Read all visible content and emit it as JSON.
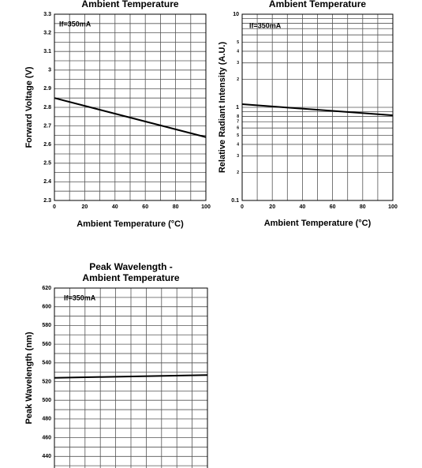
{
  "chart_data": [
    {
      "type": "line",
      "title": [
        "Ambient Temperature"
      ],
      "xlabel": "Ambient Temperature (°C)",
      "ylabel": "Forward Voltage (V)",
      "annotation": "If=350mA",
      "x": [
        0,
        100
      ],
      "values": [
        2.85,
        2.64
      ],
      "color": "#000000",
      "xlim": [
        0,
        100
      ],
      "ylim": [
        2.3,
        3.3
      ],
      "xticks": [
        0,
        20,
        40,
        60,
        80,
        100
      ],
      "yticks": [
        2.3,
        2.4,
        2.5,
        2.6,
        2.7,
        2.8,
        2.9,
        3.0,
        3.1,
        3.2,
        3.3
      ],
      "xgrid": [
        10,
        20,
        30,
        40,
        50,
        60,
        70,
        80,
        90
      ],
      "ygrid": [
        2.35,
        2.4,
        2.45,
        2.5,
        2.55,
        2.6,
        2.65,
        2.7,
        2.75,
        2.8,
        2.85,
        2.9,
        2.95,
        3.0,
        3.05,
        3.1,
        3.15,
        3.2,
        3.25
      ]
    },
    {
      "type": "line",
      "title": [
        "Ambient Temperature"
      ],
      "xlabel": "Ambient Temperature (°C)",
      "ylabel": "Relative Radiant Intensity (A.U.)",
      "annotation": "If=350mA",
      "x": [
        0,
        100
      ],
      "values": [
        1.08,
        0.82
      ],
      "color": "#000000",
      "ylog": true,
      "xlim": [
        0,
        100
      ],
      "ylim": [
        0.1,
        10
      ],
      "xticks": [
        0,
        20,
        40,
        60,
        80,
        100
      ],
      "yticks": [
        10,
        5,
        4,
        3,
        2,
        1,
        {
          "value": 0.8,
          "label": "8"
        },
        {
          "value": 0.7,
          "label": "7"
        },
        {
          "value": 0.6,
          "label": "6"
        },
        {
          "value": 0.5,
          "label": "5"
        },
        {
          "value": 0.4,
          "label": "4"
        },
        {
          "value": 0.3,
          "label": "3"
        },
        {
          "value": 0.2,
          "label": "2"
        },
        0.1
      ],
      "xgrid": [
        10,
        20,
        30,
        40,
        50,
        60,
        70,
        80,
        90
      ],
      "ygrid": [
        0.2,
        0.3,
        0.4,
        0.5,
        0.6,
        0.7,
        0.8,
        0.9,
        1,
        2,
        3,
        4,
        5,
        6,
        7,
        8,
        9
      ]
    },
    {
      "type": "line",
      "title": [
        "Peak Wavelength -",
        "Ambient Temperature"
      ],
      "ylabel": "Peak Wavelength (nm)",
      "annotation": "If=350mA",
      "x": [
        0,
        100
      ],
      "values": [
        524,
        527
      ],
      "color": "#000000",
      "xlim": [
        0,
        100
      ],
      "ylim": [
        420,
        620
      ],
      "yticks": [
        440,
        460,
        480,
        500,
        520,
        540,
        560,
        580,
        600,
        620
      ],
      "xgrid": [
        10,
        20,
        30,
        40,
        50,
        60,
        70,
        80,
        90
      ],
      "ygrid": [
        430,
        440,
        450,
        460,
        470,
        480,
        490,
        500,
        510,
        520,
        530,
        540,
        550,
        560,
        570,
        580,
        590,
        600,
        610
      ]
    }
  ]
}
